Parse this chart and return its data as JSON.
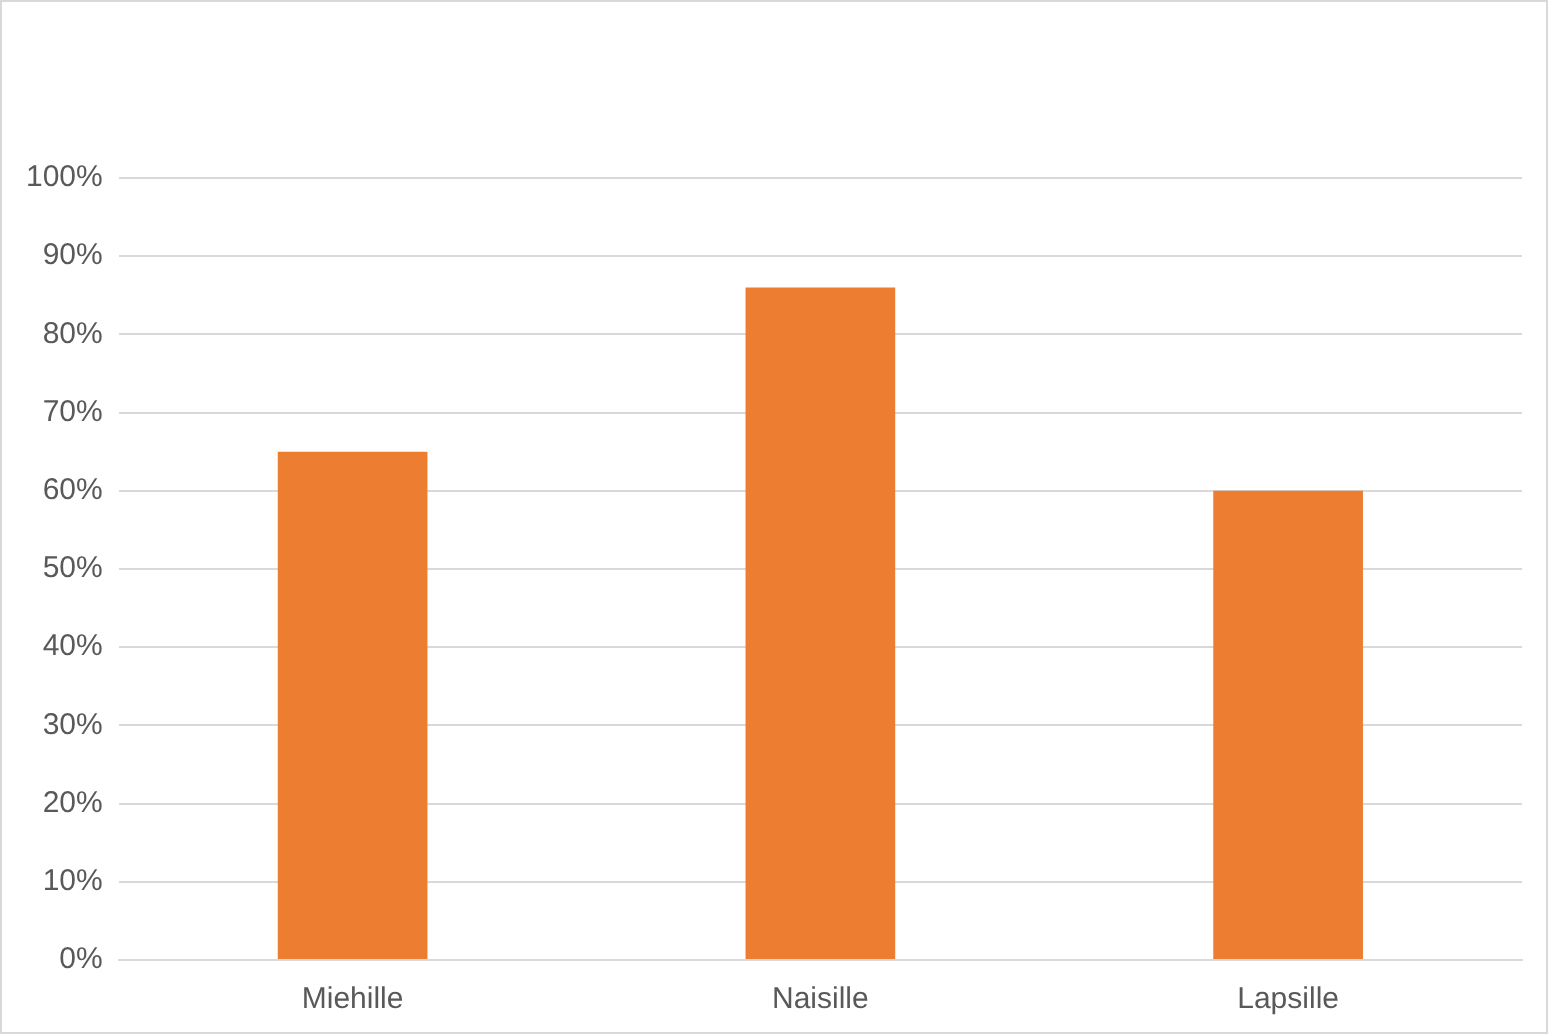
{
  "chart_data": {
    "type": "bar",
    "categories": [
      "Miehille",
      "Naisille",
      "Lapsille"
    ],
    "values": [
      65,
      86,
      60
    ],
    "color": "#ed7d31",
    "ylim": [
      0,
      100
    ],
    "yticks": [
      {
        "value": 0,
        "label": "0%"
      },
      {
        "value": 10,
        "label": "10%"
      },
      {
        "value": 20,
        "label": "20%"
      },
      {
        "value": 30,
        "label": "30%"
      },
      {
        "value": 40,
        "label": "40%"
      },
      {
        "value": 50,
        "label": "50%"
      },
      {
        "value": 60,
        "label": "60%"
      },
      {
        "value": 70,
        "label": "70%"
      },
      {
        "value": 80,
        "label": "80%"
      },
      {
        "value": 90,
        "label": "90%"
      },
      {
        "value": 100,
        "label": "100%"
      }
    ],
    "grid": "y",
    "legend": false
  }
}
